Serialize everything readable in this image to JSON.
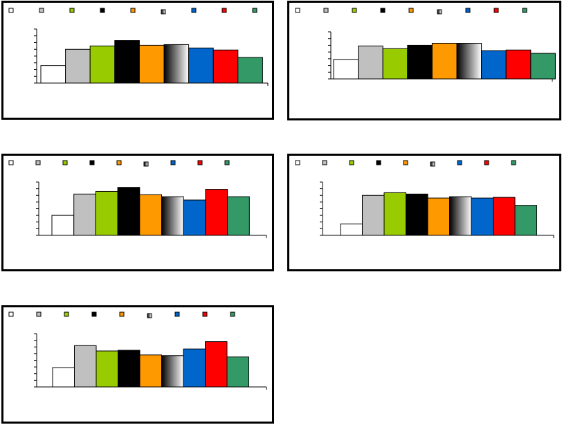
{
  "chart_data": [
    {
      "type": "bar",
      "legend": "top",
      "grid": false,
      "ylim": [
        0,
        8
      ],
      "categories": [
        "",
        "",
        "",
        "",
        "",
        "",
        "",
        "",
        ""
      ],
      "series_colors": [
        "#ffffff",
        "#c0c0c0",
        "#99cc00",
        "#000000",
        "#ff9900",
        "gradient-black-white",
        "#0066cc",
        "#ff0000",
        "#339966"
      ],
      "values": [
        2.6,
        5.0,
        5.5,
        6.3,
        5.6,
        5.7,
        5.2,
        4.9,
        3.8
      ]
    },
    {
      "type": "bar",
      "legend": "top",
      "grid": false,
      "ylim": [
        0,
        7
      ],
      "categories": [
        "",
        "",
        "",
        "",
        "",
        "",
        "",
        "",
        ""
      ],
      "series_colors": [
        "#ffffff",
        "#c0c0c0",
        "#99cc00",
        "#000000",
        "#ff9900",
        "gradient-black-white",
        "#0066cc",
        "#ff0000",
        "#339966"
      ],
      "values": [
        2.9,
        4.9,
        4.5,
        5.0,
        5.3,
        5.3,
        4.2,
        4.3,
        3.8
      ]
    },
    {
      "type": "bar",
      "legend": "top",
      "grid": false,
      "ylim": [
        0,
        8
      ],
      "categories": [
        "",
        "",
        "",
        "",
        "",
        "",
        "",
        "",
        ""
      ],
      "series_colors": [
        "#ffffff",
        "#c0c0c0",
        "#99cc00",
        "#000000",
        "#ff9900",
        "gradient-black-white",
        "#0066cc",
        "#ff0000",
        "#339966"
      ],
      "values": [
        3.0,
        6.2,
        6.6,
        7.2,
        6.1,
        5.8,
        5.3,
        6.9,
        5.8
      ]
    },
    {
      "type": "bar",
      "legend": "top",
      "grid": false,
      "ylim": [
        0,
        8
      ],
      "categories": [
        "",
        "",
        "",
        "",
        "",
        "",
        "",
        "",
        ""
      ],
      "series_colors": [
        "#ffffff",
        "#c0c0c0",
        "#99cc00",
        "#000000",
        "#ff9900",
        "gradient-black-white",
        "#0066cc",
        "#ff0000",
        "#339966"
      ],
      "values": [
        1.7,
        6.0,
        6.4,
        6.2,
        5.6,
        5.8,
        5.6,
        5.7,
        4.5
      ]
    },
    {
      "type": "bar",
      "legend": "top",
      "grid": false,
      "ylim": [
        0,
        8
      ],
      "categories": [
        "",
        "",
        "",
        "",
        "",
        "",
        "",
        "",
        ""
      ],
      "series_colors": [
        "#ffffff",
        "#c0c0c0",
        "#99cc00",
        "#000000",
        "#ff9900",
        "gradient-black-white",
        "#0066cc",
        "#ff0000",
        "#339966"
      ],
      "values": [
        2.9,
        6.2,
        5.4,
        5.5,
        4.8,
        4.7,
        5.7,
        6.8,
        4.5
      ]
    }
  ]
}
